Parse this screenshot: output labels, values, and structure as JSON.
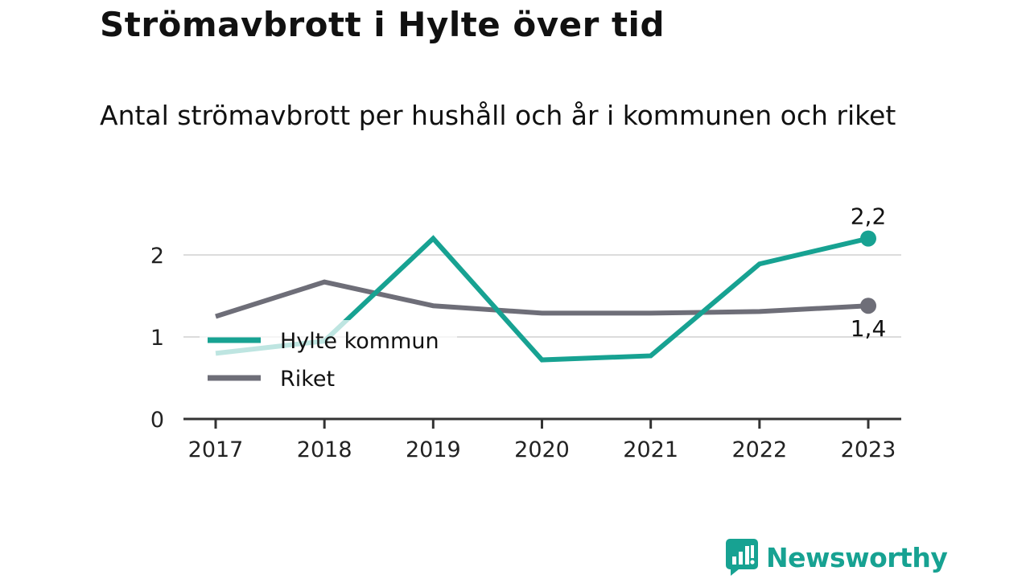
{
  "header": {
    "title": "Strömavbrott i Hylte över tid",
    "subtitle": "Antal strömavbrott per hushåll och år i kommunen och riket"
  },
  "brand": {
    "name": "Newsworthy",
    "icon": "newsworthy-logo-icon",
    "color": "#17a292"
  },
  "chart_data": {
    "type": "line",
    "title": "Strömavbrott i Hylte över tid",
    "subtitle": "Antal strömavbrott per hushåll och år i kommunen och riket",
    "categories": [
      "2017",
      "2018",
      "2019",
      "2020",
      "2021",
      "2022",
      "2023"
    ],
    "y_ticks": [
      0,
      1,
      2
    ],
    "y_tick_labels": [
      "0",
      "1",
      "2"
    ],
    "ylim": [
      0,
      2.3
    ],
    "grid": true,
    "legend_position": "inside-left",
    "series": [
      {
        "name": "Hylte kommun",
        "color": "#17a292",
        "values": [
          0.8,
          0.95,
          2.2,
          0.72,
          0.77,
          1.89,
          2.2
        ],
        "end_label": "2,2"
      },
      {
        "name": "Riket",
        "color": "#6e6e78",
        "values": [
          1.25,
          1.67,
          1.38,
          1.29,
          1.29,
          1.31,
          1.38
        ],
        "end_label": "1,4"
      }
    ]
  }
}
